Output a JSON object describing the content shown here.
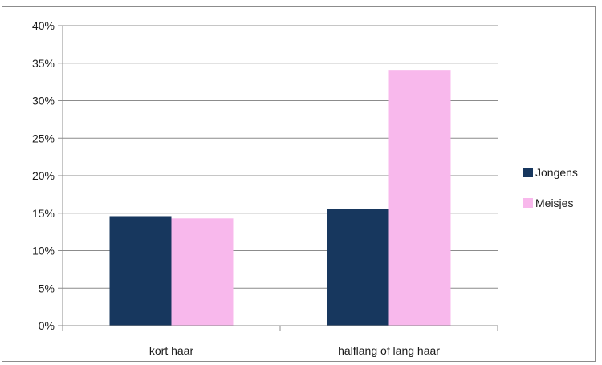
{
  "chart_data": {
    "type": "bar",
    "categories": [
      "kort haar",
      "halflang of lang haar"
    ],
    "series": [
      {
        "name": "Jongens",
        "values": [
          14.6,
          15.6
        ],
        "color": "#17375e"
      },
      {
        "name": "Meisjes",
        "values": [
          14.3,
          34.1
        ],
        "color": "#f8b8ec"
      }
    ],
    "ylim": [
      0,
      40
    ],
    "yticks": [
      0,
      5,
      10,
      15,
      20,
      25,
      30,
      35,
      40
    ],
    "ytick_suffix": "%",
    "grid": true,
    "legend": "right",
    "colors": {
      "grid": "#8c8c8c",
      "axis": "#8c8c8c"
    }
  }
}
